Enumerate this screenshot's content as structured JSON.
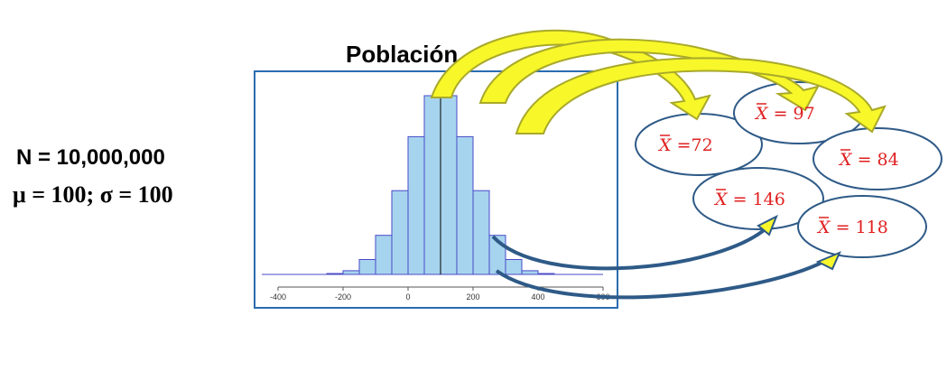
{
  "population": {
    "title": "Población",
    "n_label": "N = 10,000,000",
    "params_label": "μ = 100; σ = 100"
  },
  "chart_data": {
    "type": "bar",
    "x_ticks": [
      "-400",
      "-200",
      "0",
      "200",
      "400",
      "600"
    ],
    "xlim": [
      -450,
      600
    ],
    "bins": [
      {
        "x0": -250,
        "x1": -200,
        "value": 0.3
      },
      {
        "x0": -200,
        "x1": -150,
        "value": 1.2
      },
      {
        "x0": -150,
        "x1": -100,
        "value": 4.8
      },
      {
        "x0": -100,
        "x1": -50,
        "value": 12.6
      },
      {
        "x0": -50,
        "x1": 0,
        "value": 27.0
      },
      {
        "x0": 0,
        "x1": 50,
        "value": 44.4
      },
      {
        "x0": 50,
        "x1": 100,
        "value": 57.6
      },
      {
        "x0": 100,
        "x1": 150,
        "value": 57.6
      },
      {
        "x0": 150,
        "x1": 200,
        "value": 44.4
      },
      {
        "x0": 200,
        "x1": 250,
        "value": 27.0
      },
      {
        "x0": 250,
        "x1": 300,
        "value": 12.6
      },
      {
        "x0": 300,
        "x1": 350,
        "value": 4.8
      },
      {
        "x0": 350,
        "x1": 400,
        "value": 1.2
      },
      {
        "x0": 400,
        "x1": 450,
        "value": 0.3
      }
    ],
    "mean_line": 100
  },
  "samples": [
    {
      "value": "72"
    },
    {
      "value": "97"
    },
    {
      "value": "84"
    },
    {
      "value": "146"
    },
    {
      "value": "118"
    }
  ],
  "colors": {
    "frame": "#2b6cb0",
    "bar_fill": "#a6d4ee",
    "bar_stroke": "#4a4ac8",
    "arrow_fill": "#f7f72a",
    "arrow_stroke": "#a9a92a",
    "curve_arrow": "#2e5a87",
    "ellipse_stroke": "#2e5a87",
    "sample_text": "#e02020"
  }
}
